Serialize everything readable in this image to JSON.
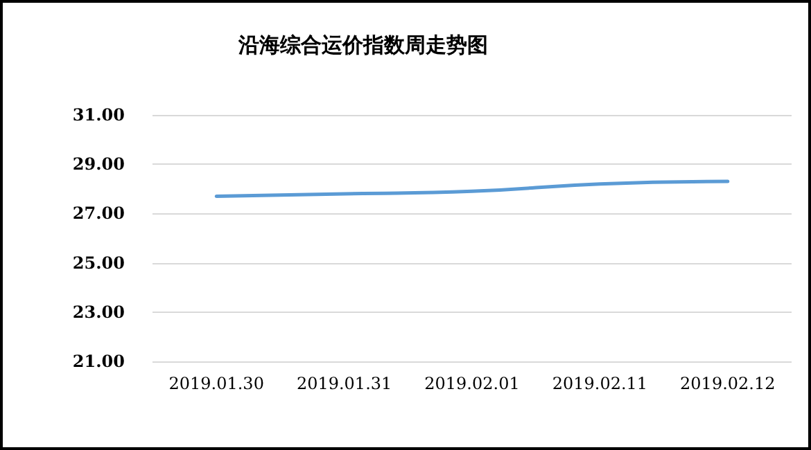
{
  "chart_data": {
    "type": "line",
    "title": "沿海综合运价指数周走势图",
    "categories": [
      "2019.01.30",
      "2019.01.31",
      "2019.02.01",
      "2019.02.11",
      "2019.02.12"
    ],
    "series": [
      {
        "color": "#5b9bd5",
        "values": [
          27.7,
          27.8,
          27.9,
          28.2,
          28.3
        ]
      }
    ],
    "ylim": [
      21,
      31
    ],
    "yticks": [
      {
        "value": 21,
        "label": "21.00"
      },
      {
        "value": 23,
        "label": "23.00"
      },
      {
        "value": 25,
        "label": "25.00"
      },
      {
        "value": 27,
        "label": "27.00"
      },
      {
        "value": 29,
        "label": "29.00"
      },
      {
        "value": 31,
        "label": "31.00"
      }
    ],
    "grid": "y",
    "marker": "none",
    "line_style": "solid"
  }
}
